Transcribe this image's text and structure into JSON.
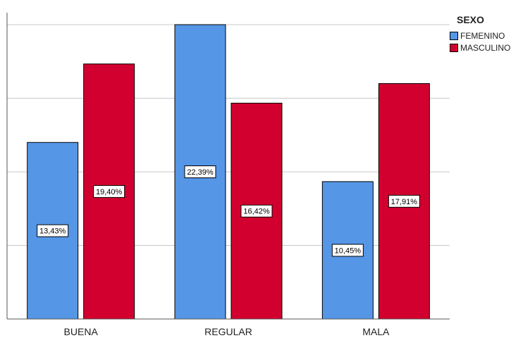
{
  "chart_data": {
    "type": "bar",
    "categories": [
      "BUENA",
      "REGULAR",
      "MALA"
    ],
    "series": [
      {
        "name": "FEMENINO",
        "color": "#5596e6",
        "values": [
          13.43,
          22.39,
          10.45
        ],
        "labels": [
          "13,43%",
          "22,39%",
          "10,45%"
        ]
      },
      {
        "name": "MASCULINO",
        "color": "#d2002e",
        "values": [
          19.4,
          16.42,
          17.91
        ],
        "labels": [
          "19,40%",
          "16,42%",
          "17,91%"
        ]
      }
    ],
    "legend_title": "SEXO",
    "legend_position": "top-right",
    "ylim": [
      0,
      22.39
    ],
    "grid": true
  }
}
